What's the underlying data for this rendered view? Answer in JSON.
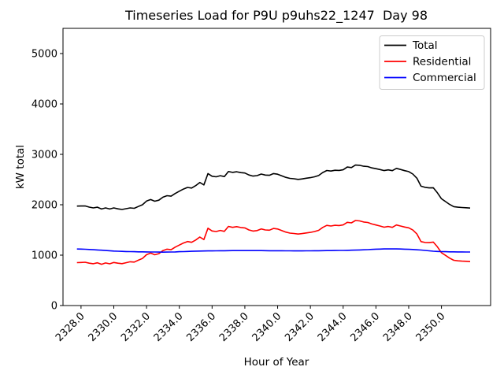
{
  "figure": {
    "title": "Timeseries Load for P9U p9uhs22_1247  Day 98",
    "xlabel": "Hour of Year",
    "ylabel": "kW total"
  },
  "legend": {
    "position": "upper right",
    "items": [
      {
        "label": "Total",
        "color": "#000000"
      },
      {
        "label": "Residential",
        "color": "#ff0000"
      },
      {
        "label": "Commercial",
        "color": "#0000ff"
      }
    ]
  },
  "chart_data": {
    "type": "line",
    "title": "Timeseries Load for P9U p9uhs22_1247  Day 98",
    "xlabel": "Hour of Year",
    "ylabel": "kW total",
    "xlim": [
      2326.9,
      2353.0
    ],
    "ylim": [
      0,
      5500
    ],
    "grid": false,
    "legend_position": "upper right",
    "xticks": [
      2328,
      2330,
      2332,
      2334,
      2336,
      2338,
      2340,
      2342,
      2344,
      2346,
      2348,
      2350
    ],
    "xtick_labels": [
      "2328.0",
      "2330.0",
      "2332.0",
      "2334.0",
      "2336.0",
      "2338.0",
      "2340.0",
      "2342.0",
      "2344.0",
      "2346.0",
      "2348.0",
      "2350.0"
    ],
    "yticks": [
      0,
      1000,
      2000,
      3000,
      4000,
      5000
    ],
    "ytick_labels": [
      "0",
      "1000",
      "2000",
      "3000",
      "4000",
      "5000"
    ],
    "x": [
      2327.75,
      2328.0,
      2328.25,
      2328.5,
      2328.75,
      2329.0,
      2329.25,
      2329.5,
      2329.75,
      2330.0,
      2330.25,
      2330.5,
      2330.75,
      2331.0,
      2331.25,
      2331.5,
      2331.75,
      2332.0,
      2332.25,
      2332.5,
      2332.75,
      2333.0,
      2333.25,
      2333.5,
      2333.75,
      2334.0,
      2334.25,
      2334.5,
      2334.75,
      2335.0,
      2335.25,
      2335.5,
      2335.75,
      2336.0,
      2336.25,
      2336.5,
      2336.75,
      2337.0,
      2337.25,
      2337.5,
      2337.75,
      2338.0,
      2338.25,
      2338.5,
      2338.75,
      2339.0,
      2339.25,
      2339.5,
      2339.75,
      2340.0,
      2340.25,
      2340.5,
      2340.75,
      2341.0,
      2341.25,
      2341.5,
      2341.75,
      2342.0,
      2342.25,
      2342.5,
      2342.75,
      2343.0,
      2343.25,
      2343.5,
      2343.75,
      2344.0,
      2344.25,
      2344.5,
      2344.75,
      2345.0,
      2345.25,
      2345.5,
      2345.75,
      2346.0,
      2346.25,
      2346.5,
      2346.75,
      2347.0,
      2347.25,
      2347.5,
      2347.75,
      2348.0,
      2348.25,
      2348.5,
      2348.75,
      2349.0,
      2349.25,
      2349.5,
      2349.75,
      2350.0,
      2350.25,
      2350.5,
      2350.75,
      2351.0,
      2351.25,
      2351.5,
      2351.75
    ],
    "series": [
      {
        "name": "Total",
        "color": "#000000",
        "values": [
          1974,
          1975,
          1977,
          1953,
          1938,
          1951,
          1916,
          1937,
          1915,
          1937,
          1918,
          1907,
          1922,
          1938,
          1930,
          1966,
          2000,
          2074,
          2103,
          2070,
          2091,
          2150,
          2179,
          2170,
          2224,
          2268,
          2311,
          2344,
          2332,
          2380,
          2442,
          2393,
          2619,
          2565,
          2554,
          2577,
          2560,
          2659,
          2642,
          2655,
          2638,
          2630,
          2590,
          2568,
          2578,
          2610,
          2589,
          2584,
          2618,
          2606,
          2575,
          2544,
          2524,
          2515,
          2503,
          2513,
          2526,
          2538,
          2555,
          2580,
          2639,
          2680,
          2669,
          2684,
          2681,
          2694,
          2748,
          2738,
          2788,
          2783,
          2764,
          2758,
          2732,
          2716,
          2699,
          2678,
          2692,
          2677,
          2722,
          2700,
          2677,
          2658,
          2610,
          2527,
          2369,
          2346,
          2334,
          2338,
          2238,
          2118,
          2063,
          2006,
          1963,
          1952,
          1946,
          1941,
          1934
        ]
      },
      {
        "name": "Residential",
        "color": "#ff0000",
        "values": [
          852,
          855,
          860,
          840,
          830,
          848,
          818,
          845,
          828,
          855,
          840,
          832,
          850,
          868,
          862,
          900,
          935,
          1010,
          1040,
          1008,
          1030,
          1090,
          1118,
          1108,
          1160,
          1200,
          1240,
          1270,
          1255,
          1300,
          1360,
          1310,
          1535,
          1480,
          1468,
          1490,
          1472,
          1570,
          1552,
          1565,
          1548,
          1540,
          1500,
          1478,
          1488,
          1520,
          1500,
          1496,
          1530,
          1518,
          1488,
          1458,
          1438,
          1430,
          1418,
          1428,
          1440,
          1452,
          1468,
          1492,
          1550,
          1590,
          1578,
          1592,
          1588,
          1600,
          1652,
          1640,
          1688,
          1680,
          1658,
          1648,
          1618,
          1598,
          1578,
          1555,
          1568,
          1552,
          1598,
          1578,
          1558,
          1542,
          1498,
          1420,
          1268,
          1252,
          1248,
          1260,
          1165,
          1048,
          995,
          940,
          898,
          888,
          882,
          878,
          872
        ]
      },
      {
        "name": "Commercial",
        "color": "#0000ff",
        "values": [
          1122,
          1120,
          1117,
          1113,
          1108,
          1103,
          1098,
          1092,
          1087,
          1082,
          1078,
          1075,
          1072,
          1070,
          1068,
          1066,
          1065,
          1064,
          1063,
          1062,
          1061,
          1060,
          1061,
          1062,
          1064,
          1068,
          1071,
          1074,
          1077,
          1080,
          1082,
          1083,
          1084,
          1085,
          1086,
          1087,
          1088,
          1089,
          1090,
          1090,
          1090,
          1090,
          1090,
          1090,
          1090,
          1090,
          1089,
          1088,
          1088,
          1088,
          1087,
          1086,
          1086,
          1085,
          1085,
          1085,
          1086,
          1086,
          1087,
          1088,
          1089,
          1090,
          1091,
          1092,
          1093,
          1094,
          1096,
          1098,
          1100,
          1103,
          1106,
          1110,
          1114,
          1118,
          1121,
          1123,
          1124,
          1125,
          1124,
          1122,
          1119,
          1116,
          1112,
          1107,
          1101,
          1094,
          1086,
          1078,
          1073,
          1070,
          1068,
          1066,
          1065,
          1064,
          1064,
          1063,
          1062
        ]
      }
    ]
  }
}
